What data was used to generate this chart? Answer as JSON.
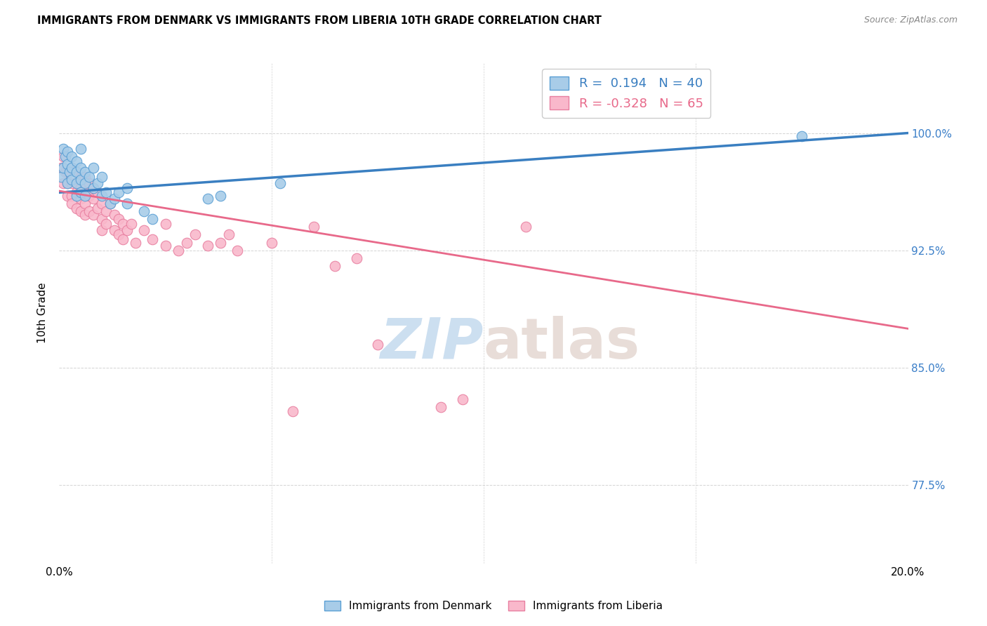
{
  "title": "IMMIGRANTS FROM DENMARK VS IMMIGRANTS FROM LIBERIA 10TH GRADE CORRELATION CHART",
  "source": "Source: ZipAtlas.com",
  "ylabel": "10th Grade",
  "ytick_labels": [
    "77.5%",
    "85.0%",
    "92.5%",
    "100.0%"
  ],
  "ytick_values": [
    0.775,
    0.85,
    0.925,
    1.0
  ],
  "xlim": [
    0.0,
    0.2
  ],
  "ylim": [
    0.725,
    1.045
  ],
  "denmark_R": 0.194,
  "denmark_N": 40,
  "liberia_R": -0.328,
  "liberia_N": 65,
  "denmark_color": "#a8cce8",
  "liberia_color": "#f9b8cb",
  "denmark_edge_color": "#5a9fd4",
  "liberia_edge_color": "#e87fa0",
  "denmark_line_color": "#3a7fc1",
  "liberia_line_color": "#e8698a",
  "watermark_zip_color": "#ccdff0",
  "watermark_atlas_color": "#e8ddd8",
  "denmark_x": [
    0.0005,
    0.001,
    0.001,
    0.0015,
    0.002,
    0.002,
    0.002,
    0.0025,
    0.003,
    0.003,
    0.003,
    0.004,
    0.004,
    0.004,
    0.004,
    0.005,
    0.005,
    0.005,
    0.005,
    0.006,
    0.006,
    0.006,
    0.007,
    0.008,
    0.008,
    0.009,
    0.01,
    0.01,
    0.011,
    0.012,
    0.013,
    0.014,
    0.016,
    0.016,
    0.02,
    0.022,
    0.035,
    0.038,
    0.052,
    0.175
  ],
  "denmark_y": [
    0.972,
    0.978,
    0.99,
    0.985,
    0.988,
    0.98,
    0.968,
    0.975,
    0.985,
    0.978,
    0.97,
    0.982,
    0.975,
    0.968,
    0.96,
    0.978,
    0.97,
    0.962,
    0.99,
    0.975,
    0.968,
    0.96,
    0.972,
    0.965,
    0.978,
    0.968,
    0.96,
    0.972,
    0.962,
    0.955,
    0.958,
    0.962,
    0.965,
    0.955,
    0.95,
    0.945,
    0.958,
    0.96,
    0.968,
    0.998
  ],
  "liberia_x": [
    0.0005,
    0.001,
    0.001,
    0.0015,
    0.002,
    0.002,
    0.002,
    0.003,
    0.003,
    0.003,
    0.003,
    0.004,
    0.004,
    0.004,
    0.005,
    0.005,
    0.005,
    0.005,
    0.006,
    0.006,
    0.006,
    0.006,
    0.007,
    0.007,
    0.007,
    0.008,
    0.008,
    0.008,
    0.009,
    0.009,
    0.01,
    0.01,
    0.01,
    0.011,
    0.011,
    0.012,
    0.013,
    0.013,
    0.014,
    0.014,
    0.015,
    0.015,
    0.016,
    0.017,
    0.018,
    0.02,
    0.022,
    0.025,
    0.025,
    0.028,
    0.03,
    0.032,
    0.035,
    0.038,
    0.04,
    0.042,
    0.05,
    0.055,
    0.06,
    0.065,
    0.07,
    0.075,
    0.09,
    0.095,
    0.11
  ],
  "liberia_y": [
    0.978,
    0.985,
    0.968,
    0.975,
    0.968,
    0.975,
    0.96,
    0.978,
    0.96,
    0.968,
    0.955,
    0.975,
    0.962,
    0.952,
    0.965,
    0.972,
    0.958,
    0.95,
    0.972,
    0.962,
    0.955,
    0.948,
    0.968,
    0.96,
    0.95,
    0.965,
    0.958,
    0.948,
    0.962,
    0.952,
    0.955,
    0.945,
    0.938,
    0.95,
    0.942,
    0.955,
    0.948,
    0.938,
    0.945,
    0.935,
    0.942,
    0.932,
    0.938,
    0.942,
    0.93,
    0.938,
    0.932,
    0.928,
    0.942,
    0.925,
    0.93,
    0.935,
    0.928,
    0.93,
    0.935,
    0.925,
    0.93,
    0.822,
    0.94,
    0.915,
    0.92,
    0.865,
    0.825,
    0.83,
    0.94
  ],
  "dk_line_x0": 0.0,
  "dk_line_y0": 0.962,
  "dk_line_x1": 0.2,
  "dk_line_y1": 1.0,
  "lb_line_x0": 0.0,
  "lb_line_y0": 0.963,
  "lb_line_x1": 0.2,
  "lb_line_y1": 0.875
}
